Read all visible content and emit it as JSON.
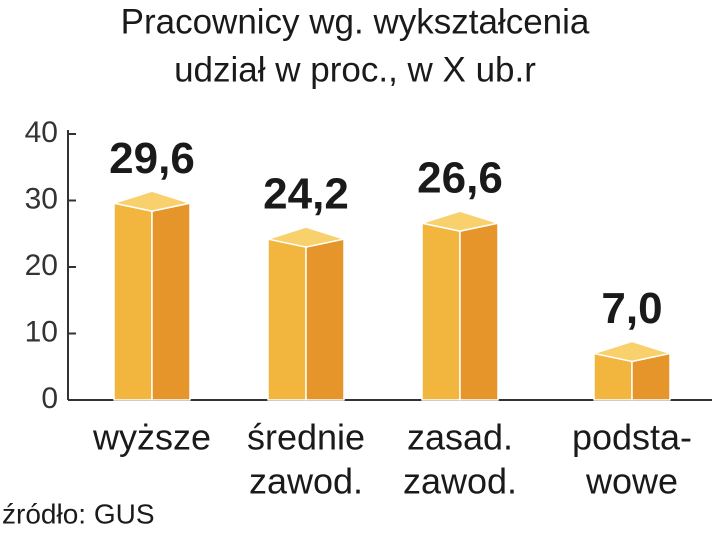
{
  "chart_data": {
    "type": "bar3d",
    "title": "Pracownicy wg. wykształcenia",
    "subtitle": "udział w proc., w X ub.r",
    "categories": [
      [
        "wyższe"
      ],
      [
        "średnie",
        "zawod."
      ],
      [
        "zasad.",
        "zawod."
      ],
      [
        "podsta-",
        "wowe"
      ]
    ],
    "values": [
      29.6,
      24.2,
      26.6,
      7.0
    ],
    "value_labels": [
      "29,6",
      "24,2",
      "26,6",
      "7,0"
    ],
    "ylim": [
      0,
      40
    ],
    "yticks": [
      0,
      10,
      20,
      30,
      40
    ],
    "colors": {
      "front": "#f2b63f",
      "side": "#e6952a",
      "top": "#f8d06c"
    },
    "source": "źródło: GUS"
  }
}
